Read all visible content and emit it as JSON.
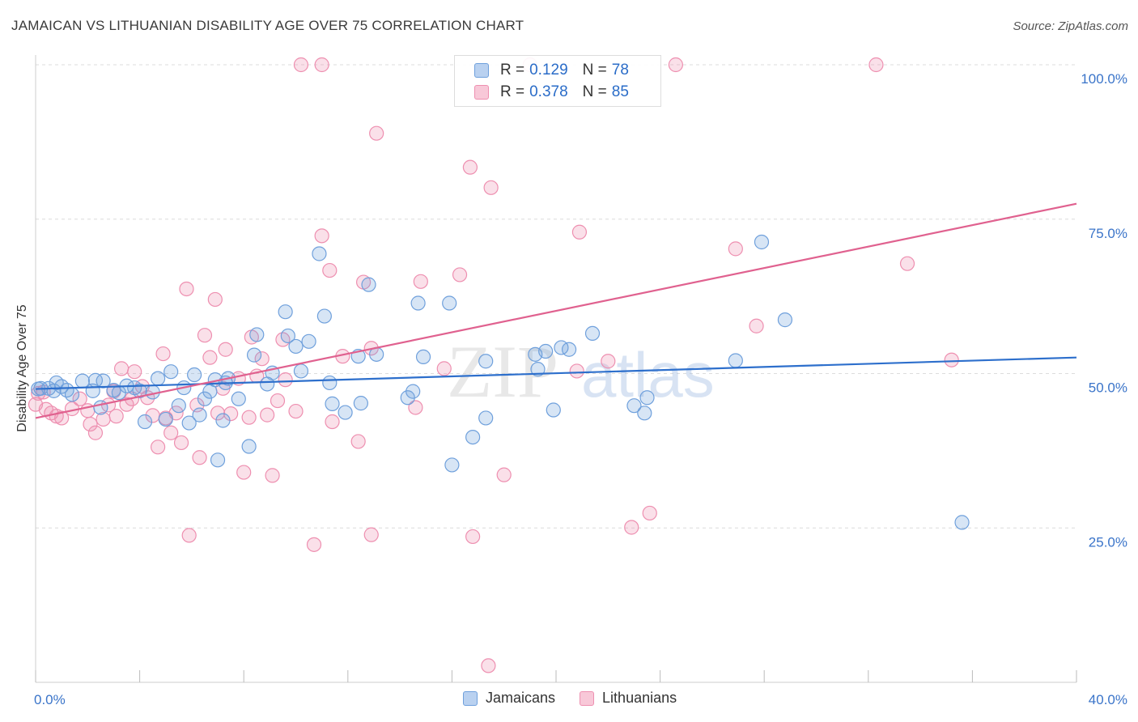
{
  "title": "JAMAICAN VS LITHUANIAN DISABILITY AGE OVER 75 CORRELATION CHART",
  "source": "Source: ZipAtlas.com",
  "watermark": {
    "zip": "ZIP",
    "atlas": "atlas"
  },
  "legend": {
    "series1": {
      "r_label": "R =",
      "r_value": "0.129",
      "n_label": "N =",
      "n_value": "78"
    },
    "series2": {
      "r_label": "R =",
      "r_value": "0.378",
      "n_label": "N =",
      "n_value": "85"
    }
  },
  "bottom_legend": {
    "series1": "Jamaicans",
    "series2": "Lithuanians"
  },
  "chart_data": {
    "type": "scatter",
    "title": "JAMAICAN VS LITHUANIAN DISABILITY AGE OVER 75 CORRELATION CHART",
    "xlabel": "",
    "ylabel": "Disability Age Over 75",
    "xlim": [
      0,
      40
    ],
    "ylim": [
      0,
      100
    ],
    "x_tick_labels": [
      "0.0%",
      "40.0%"
    ],
    "y_ticks": [
      25,
      50,
      75,
      100
    ],
    "y_tick_labels": [
      "25.0%",
      "50.0%",
      "75.0%",
      "100.0%"
    ],
    "grid": true,
    "colors": {
      "jamaicans": "#6fa0dc",
      "lithuanians": "#ee8fb0",
      "blue_line": "#2d6fcc",
      "pink_line": "#e0618f"
    },
    "series": [
      {
        "name": "Jamaicans",
        "trend": {
          "x": [
            0,
            40
          ],
          "y": [
            47.5,
            52.6
          ]
        },
        "points": [
          [
            0.2,
            47.6
          ],
          [
            0.5,
            47.6
          ],
          [
            0.7,
            47.2
          ],
          [
            0.8,
            48.5
          ],
          [
            1.0,
            47.9
          ],
          [
            1.2,
            47.3
          ],
          [
            1.4,
            46.6
          ],
          [
            1.8,
            48.8
          ],
          [
            2.2,
            47.2
          ],
          [
            2.3,
            48.9
          ],
          [
            2.5,
            44.5
          ],
          [
            2.6,
            48.8
          ],
          [
            3.0,
            47.3
          ],
          [
            3.2,
            46.9
          ],
          [
            3.5,
            48.0
          ],
          [
            3.8,
            47.7
          ],
          [
            4.0,
            47.2
          ],
          [
            4.2,
            42.2
          ],
          [
            4.5,
            47.0
          ],
          [
            4.7,
            49.2
          ],
          [
            5.0,
            42.6
          ],
          [
            5.2,
            50.3
          ],
          [
            5.5,
            44.8
          ],
          [
            5.7,
            47.7
          ],
          [
            5.9,
            42.0
          ],
          [
            6.1,
            49.8
          ],
          [
            6.3,
            43.3
          ],
          [
            6.5,
            45.9
          ],
          [
            6.7,
            47.1
          ],
          [
            6.9,
            49.0
          ],
          [
            7.0,
            36.0
          ],
          [
            7.2,
            42.4
          ],
          [
            7.3,
            48.5
          ],
          [
            7.4,
            49.2
          ],
          [
            7.8,
            45.9
          ],
          [
            8.2,
            38.2
          ],
          [
            8.4,
            53.0
          ],
          [
            8.5,
            56.3
          ],
          [
            8.9,
            48.3
          ],
          [
            9.1,
            50.1
          ],
          [
            9.6,
            60.0
          ],
          [
            9.7,
            56.1
          ],
          [
            10.0,
            54.4
          ],
          [
            10.2,
            50.4
          ],
          [
            10.5,
            55.2
          ],
          [
            10.9,
            69.4
          ],
          [
            11.1,
            59.3
          ],
          [
            11.3,
            48.5
          ],
          [
            11.4,
            45.1
          ],
          [
            11.9,
            43.7
          ],
          [
            12.4,
            52.8
          ],
          [
            12.5,
            45.2
          ],
          [
            12.8,
            64.4
          ],
          [
            13.1,
            53.1
          ],
          [
            14.3,
            46.1
          ],
          [
            14.5,
            47.1
          ],
          [
            14.7,
            61.4
          ],
          [
            14.9,
            52.7
          ],
          [
            15.9,
            61.4
          ],
          [
            16.0,
            35.2
          ],
          [
            16.8,
            39.7
          ],
          [
            17.3,
            52.0
          ],
          [
            17.3,
            42.8
          ],
          [
            19.2,
            53.1
          ],
          [
            19.3,
            50.7
          ],
          [
            19.6,
            53.6
          ],
          [
            19.9,
            44.1
          ],
          [
            20.2,
            54.2
          ],
          [
            20.5,
            53.9
          ],
          [
            21.4,
            56.5
          ],
          [
            23.0,
            44.8
          ],
          [
            23.4,
            43.6
          ],
          [
            23.5,
            46.1
          ],
          [
            26.9,
            52.1
          ],
          [
            27.9,
            71.3
          ],
          [
            28.8,
            58.7
          ],
          [
            35.6,
            25.9
          ],
          [
            0.1,
            47.5
          ]
        ]
      },
      {
        "name": "Lithuanians",
        "trend": {
          "x": [
            0,
            40
          ],
          "y": [
            42.8,
            77.5
          ]
        },
        "points": [
          [
            0.1,
            46.8
          ],
          [
            0.4,
            44.2
          ],
          [
            0.6,
            43.6
          ],
          [
            0.8,
            43.1
          ],
          [
            1.0,
            42.8
          ],
          [
            1.4,
            44.3
          ],
          [
            1.7,
            45.9
          ],
          [
            2.0,
            44.0
          ],
          [
            2.1,
            41.8
          ],
          [
            2.3,
            40.4
          ],
          [
            2.6,
            42.6
          ],
          [
            2.8,
            44.9
          ],
          [
            3.0,
            47.1
          ],
          [
            3.1,
            43.1
          ],
          [
            3.3,
            50.8
          ],
          [
            3.5,
            45.0
          ],
          [
            3.7,
            45.9
          ],
          [
            3.8,
            50.3
          ],
          [
            4.1,
            47.9
          ],
          [
            4.3,
            46.1
          ],
          [
            4.5,
            43.2
          ],
          [
            4.7,
            38.1
          ],
          [
            4.9,
            53.2
          ],
          [
            5.0,
            42.8
          ],
          [
            5.2,
            40.4
          ],
          [
            5.4,
            43.6
          ],
          [
            5.6,
            38.8
          ],
          [
            5.8,
            63.7
          ],
          [
            5.9,
            23.8
          ],
          [
            6.2,
            44.9
          ],
          [
            6.3,
            36.4
          ],
          [
            6.5,
            56.2
          ],
          [
            6.7,
            52.6
          ],
          [
            6.9,
            62.0
          ],
          [
            7.0,
            43.6
          ],
          [
            7.2,
            47.6
          ],
          [
            7.3,
            53.9
          ],
          [
            7.5,
            43.5
          ],
          [
            7.8,
            49.2
          ],
          [
            8.0,
            34.0
          ],
          [
            8.2,
            42.9
          ],
          [
            8.3,
            55.9
          ],
          [
            8.5,
            49.6
          ],
          [
            8.7,
            52.4
          ],
          [
            8.9,
            43.3
          ],
          [
            9.1,
            33.5
          ],
          [
            9.3,
            45.6
          ],
          [
            9.5,
            55.5
          ],
          [
            9.6,
            49.0
          ],
          [
            10.0,
            43.9
          ],
          [
            10.2,
            100.0
          ],
          [
            11.0,
            100.0
          ],
          [
            10.7,
            22.3
          ],
          [
            11.0,
            72.3
          ],
          [
            11.3,
            66.7
          ],
          [
            11.4,
            42.2
          ],
          [
            11.8,
            52.8
          ],
          [
            12.4,
            39.0
          ],
          [
            12.6,
            64.8
          ],
          [
            12.9,
            54.1
          ],
          [
            12.9,
            23.9
          ],
          [
            13.1,
            88.9
          ],
          [
            14.6,
            44.5
          ],
          [
            14.8,
            64.9
          ],
          [
            15.7,
            50.8
          ],
          [
            16.3,
            66.0
          ],
          [
            16.7,
            83.4
          ],
          [
            16.8,
            23.6
          ],
          [
            17.5,
            80.1
          ],
          [
            17.4,
            2.7
          ],
          [
            18.0,
            33.6
          ],
          [
            19.0,
            100.0
          ],
          [
            20.8,
            50.4
          ],
          [
            20.9,
            72.9
          ],
          [
            22.0,
            52.0
          ],
          [
            22.9,
            25.1
          ],
          [
            23.6,
            27.4
          ],
          [
            24.6,
            100.0
          ],
          [
            26.9,
            70.2
          ],
          [
            27.7,
            57.7
          ],
          [
            32.3,
            100.0
          ],
          [
            33.5,
            67.8
          ],
          [
            35.2,
            52.2
          ],
          [
            0.0,
            45.0
          ],
          [
            0.3,
            47.0
          ]
        ]
      }
    ]
  }
}
